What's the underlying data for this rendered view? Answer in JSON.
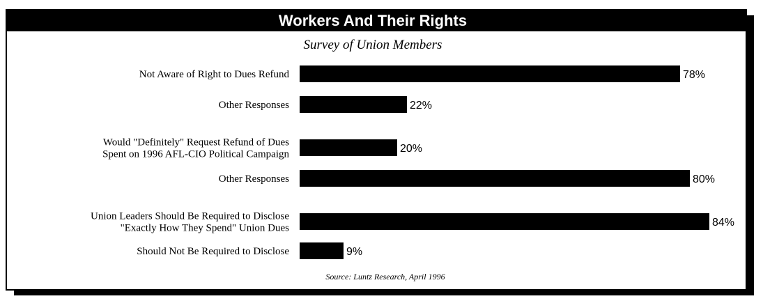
{
  "chart_data": {
    "type": "bar",
    "orientation": "horizontal",
    "title": "Workers And Their Rights",
    "subtitle": "Survey of Union Members",
    "source": "Source: Luntz Research, April 1996",
    "value_suffix": "%",
    "xlim": [
      0,
      100
    ],
    "grid": false,
    "categories": [
      [
        "Not Aware of Right to Dues Refund"
      ],
      [
        "Other Responses"
      ],
      [
        "Would \"Definitely\" Request Refund of Dues",
        "Spent on 1996 AFL-CIO Political Campaign"
      ],
      [
        "Other Responses"
      ],
      [
        "Union Leaders Should Be Required to Disclose",
        "\"Exactly How They Spend\" Union Dues"
      ],
      [
        "Should Not Be Required to Disclose"
      ]
    ],
    "values": [
      78,
      22,
      20,
      80,
      84,
      9
    ],
    "colors": {
      "bar": "#000000",
      "title_bg": "#000000",
      "title_fg": "#ffffff",
      "frame": "#000000"
    }
  }
}
